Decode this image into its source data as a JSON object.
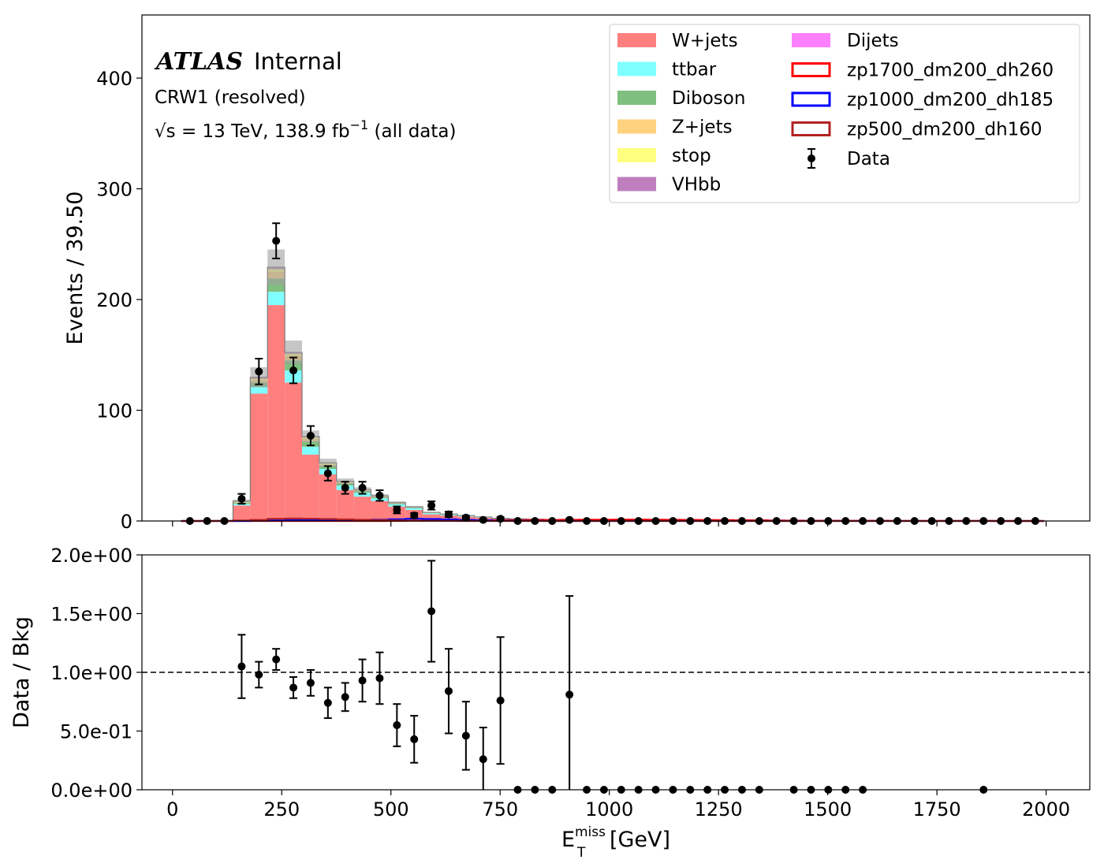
{
  "colors": {
    "wjets": "#ff7f7f",
    "ttbar": "#7fffff",
    "diboson": "#7fbf7f",
    "zjets": "#ffd27f",
    "stop": "#ffff7f",
    "vhbb": "#bf7fbf",
    "dijets": "#ff7fff",
    "sig1700": "#ff0000",
    "sig1000": "#0000ff",
    "sig500": "#b22222",
    "uncertainty": "#a0a0a0"
  },
  "annotation": {
    "atlas": "ATLAS",
    "internal": "Internal",
    "region": "CRW1 (resolved)",
    "sqrt": "√s",
    "energy": " = 13 TeV, 138.9 fb",
    "lumi_exp": "−1",
    "tail": " (all data)"
  },
  "chart_data": [
    {
      "type": "bar",
      "stacked": true,
      "ylabel": "Events / 39.50",
      "xlim": [
        -70,
        2100
      ],
      "ylim": [
        0,
        457
      ],
      "xticks": [
        0,
        250,
        500,
        750,
        1000,
        1250,
        1500,
        1750,
        2000
      ],
      "yticks": [
        0,
        100,
        200,
        300,
        400
      ],
      "bin_width": 39.5,
      "bin_start": 20,
      "n_bins": 50,
      "legend": {
        "location": "top-right",
        "entries": [
          "W+jets",
          "ttbar",
          "Diboson",
          "Z+jets",
          "stop",
          "VHbb",
          "Dijets",
          "zp1700_dm200_dh260",
          "zp1000_dm200_dh185",
          "zp500_dm200_dh160",
          "Data"
        ]
      },
      "series": [
        {
          "name": "W+jets",
          "key": "wjets",
          "values": [
            0.3,
            0.4,
            0.5,
            14,
            115,
            195,
            125,
            60,
            42,
            28,
            22,
            18,
            13,
            10,
            6,
            5,
            4,
            3,
            2,
            1.6,
            1.3,
            1.1,
            1,
            0.9,
            0.8,
            0.8,
            0.7,
            0.7,
            0.6,
            0.6,
            0.6,
            0.5,
            0.5,
            0.5,
            0.5,
            0.4,
            0.4,
            0.4,
            0.4,
            0.4,
            0.4,
            0.3,
            0.3,
            0.3,
            0.3,
            0.3,
            0.3,
            0.3,
            0.3,
            0.3
          ]
        },
        {
          "name": "ttbar",
          "key": "ttbar",
          "values": [
            0,
            0,
            0,
            1.5,
            6,
            12,
            11,
            7,
            5,
            4,
            3.5,
            2.5,
            2,
            1.5,
            1,
            0.8,
            0.6,
            0.4,
            0.3,
            0.2,
            0.2,
            0.1,
            0.1,
            0.1,
            0.1,
            0.1,
            0.1,
            0,
            0,
            0,
            0,
            0,
            0,
            0,
            0,
            0,
            0,
            0,
            0,
            0,
            0,
            0,
            0,
            0,
            0,
            0,
            0,
            0,
            0,
            0
          ]
        },
        {
          "name": "Diboson",
          "key": "diboson",
          "values": [
            0,
            0,
            0,
            1,
            4,
            12,
            9,
            5,
            3,
            2,
            1.5,
            1,
            0.8,
            0.6,
            0.4,
            0.3,
            0.2,
            0.2,
            0.1,
            0.1,
            0.1,
            0.1,
            0,
            0,
            0,
            0,
            0,
            0,
            0,
            0,
            0,
            0,
            0,
            0,
            0,
            0,
            0,
            0,
            0,
            0,
            0,
            0,
            0,
            0,
            0,
            0,
            0,
            0,
            0,
            0
          ]
        },
        {
          "name": "Z+jets",
          "key": "zjets",
          "values": [
            0,
            0,
            0,
            0.5,
            2,
            6,
            4,
            2,
            1,
            0.8,
            0.6,
            0.5,
            0.4,
            0.3,
            0.2,
            0.1,
            0.1,
            0.1,
            0,
            0,
            0,
            0,
            0,
            0,
            0,
            0,
            0,
            0,
            0,
            0,
            0,
            0,
            0,
            0,
            0,
            0,
            0,
            0,
            0,
            0,
            0,
            0,
            0,
            0,
            0,
            0,
            0,
            0,
            0,
            0
          ]
        },
        {
          "name": "stop",
          "key": "stop",
          "values": [
            0,
            0,
            0,
            0.5,
            1.5,
            2.5,
            2,
            1.5,
            1,
            0.7,
            0.5,
            0.4,
            0.3,
            0.2,
            0.1,
            0.1,
            0.1,
            0,
            0,
            0,
            0,
            0,
            0,
            0,
            0,
            0,
            0,
            0,
            0,
            0,
            0,
            0,
            0,
            0,
            0,
            0,
            0,
            0,
            0,
            0,
            0,
            0,
            0,
            0,
            0,
            0,
            0,
            0,
            0,
            0
          ]
        },
        {
          "name": "VHbb",
          "key": "vhbb",
          "values": [
            0,
            0,
            0,
            0.3,
            0.8,
            1.2,
            0.9,
            0.6,
            0.4,
            0.3,
            0.2,
            0.2,
            0.1,
            0.1,
            0.1,
            0,
            0,
            0,
            0,
            0,
            0,
            0,
            0,
            0,
            0,
            0,
            0,
            0,
            0,
            0,
            0,
            0,
            0,
            0,
            0,
            0,
            0,
            0,
            0,
            0,
            0,
            0,
            0,
            0,
            0,
            0,
            0,
            0,
            0,
            0
          ]
        },
        {
          "name": "Dijets",
          "key": "dijets",
          "values": [
            0,
            0,
            0,
            0.2,
            0.5,
            0.5,
            0.4,
            0.3,
            0.2,
            0.1,
            0.1,
            0.1,
            0,
            0,
            0,
            0,
            0,
            0,
            0,
            0,
            0,
            0,
            0,
            0,
            0,
            0,
            0,
            0,
            0,
            0,
            0,
            0,
            0,
            0,
            0,
            0,
            0,
            0,
            0,
            0,
            0,
            0,
            0,
            0,
            0,
            0,
            0,
            0,
            0,
            0
          ]
        }
      ],
      "signals": [
        {
          "name": "zp1700_dm200_dh260",
          "key": "sig1700",
          "values": [
            0,
            0,
            0,
            0,
            0,
            0,
            0,
            0,
            0,
            0,
            0,
            0,
            0.1,
            0.2,
            0.3,
            0.4,
            0.5,
            0.6,
            0.7,
            0.8,
            0.9,
            1,
            1.1,
            1.2,
            1.2,
            1.3,
            1.3,
            1.2,
            1.1,
            1,
            0.9,
            0.8,
            0.7,
            0.6,
            0.5,
            0.4,
            0.3,
            0.3,
            0.2,
            0.2,
            0.2,
            0.1,
            0.1,
            0.1,
            0.1,
            0.1,
            0.1,
            0,
            0,
            0
          ]
        },
        {
          "name": "zp1000_dm200_dh185",
          "key": "sig1000",
          "values": [
            0,
            0,
            0,
            0,
            0.3,
            0.5,
            0.6,
            0.7,
            0.8,
            0.9,
            1,
            1.2,
            1.5,
            2,
            1.8,
            1.4,
            1,
            0.6,
            0.3,
            0.2,
            0.1,
            0,
            0,
            0,
            0,
            0,
            0,
            0,
            0,
            0,
            0,
            0,
            0,
            0,
            0,
            0,
            0,
            0,
            0,
            0,
            0,
            0,
            0,
            0,
            0,
            0,
            0,
            0,
            0,
            0
          ]
        },
        {
          "name": "zp500_dm200_dh160",
          "key": "sig500",
          "values": [
            0,
            0,
            0,
            0.5,
            1,
            2,
            2.2,
            2.1,
            1.8,
            1.4,
            1.1,
            0.8,
            0.5,
            0.3,
            0.2,
            0.1,
            0,
            0,
            0,
            0,
            0,
            0,
            0,
            0,
            0,
            0,
            0,
            0,
            0,
            0,
            0,
            0,
            0,
            0,
            0,
            0,
            0,
            0,
            0,
            0,
            0,
            0,
            0,
            0,
            0,
            0,
            0,
            0,
            0,
            0
          ]
        }
      ],
      "uncertainty_rel": 0.07,
      "data": {
        "name": "Data",
        "x": [
          39.75,
          79.25,
          118.75,
          158.25,
          197.75,
          237.25,
          276.75,
          316.25,
          355.75,
          395.25,
          434.75,
          474.25,
          513.75,
          553.25,
          592.75,
          632.25,
          671.75,
          711.25,
          750.75,
          790.25,
          829.75,
          869.25,
          908.75,
          948.25,
          987.75,
          1027.25,
          1066.75,
          1106.25,
          1145.75,
          1185.25,
          1224.75,
          1264.25,
          1303.75,
          1343.25,
          1382.75,
          1422.25,
          1461.75,
          1501.25,
          1540.75,
          1580.25,
          1619.75,
          1659.25,
          1698.75,
          1738.25,
          1777.75,
          1817.25,
          1856.75,
          1896.25,
          1935.75,
          1975.25
        ],
        "y": [
          0,
          0,
          0,
          20,
          135,
          253,
          136,
          77,
          43,
          30,
          30,
          23,
          10,
          5,
          14,
          6,
          3,
          1,
          2,
          0,
          0,
          0,
          1,
          0,
          0,
          0,
          0,
          0,
          0,
          0,
          0,
          0,
          0,
          0,
          0,
          0,
          0,
          0,
          0,
          0,
          0,
          0,
          0,
          0,
          0,
          0,
          0,
          0,
          0,
          0
        ]
      }
    },
    {
      "type": "scatter",
      "xlabel_base": "E",
      "xlabel_sub": "T",
      "xlabel_sup": "miss",
      "xlabel_unit": " [GeV]",
      "ylabel": "Data / Bkg",
      "xlim": [
        -70,
        2100
      ],
      "ylim": [
        0,
        2
      ],
      "reference_line": 1.0,
      "xticks": [
        0,
        250,
        500,
        750,
        1000,
        1250,
        1500,
        1750,
        2000
      ],
      "yticks": [
        0,
        0.5,
        1.0,
        1.5,
        2.0
      ],
      "ytick_labels": [
        "0.0e+00",
        "5.0e-01",
        "1.0e+00",
        "1.5e+00",
        "2.0e+00"
      ],
      "points": {
        "x": [
          158.25,
          197.75,
          237.25,
          276.75,
          316.25,
          355.75,
          395.25,
          434.75,
          474.25,
          513.75,
          553.25,
          592.75,
          632.25,
          671.75,
          711.25,
          750.75,
          790.25,
          829.75,
          869.25,
          908.75,
          948.25,
          987.75,
          1027.25,
          1066.75,
          1106.25,
          1145.75,
          1185.25,
          1224.75,
          1264.25,
          1303.75,
          1343.25,
          1422.25,
          1461.75,
          1501.25,
          1540.75,
          1580.25,
          1856.75
        ],
        "y": [
          1.05,
          0.98,
          1.11,
          0.87,
          0.91,
          0.74,
          0.79,
          0.93,
          0.95,
          0.55,
          0.43,
          1.52,
          0.84,
          0.46,
          0.26,
          0.76,
          0,
          0,
          0,
          0.81,
          0,
          0,
          0,
          0,
          0,
          0,
          0,
          0,
          0,
          0,
          0,
          0,
          0,
          0,
          0,
          0,
          0
        ],
        "err": [
          0.27,
          0.11,
          0.09,
          0.09,
          0.11,
          0.13,
          0.12,
          0.18,
          0.22,
          0.18,
          0.2,
          0.43,
          0.36,
          0.29,
          0.27,
          0.54,
          0,
          0,
          0,
          0.84,
          0,
          0,
          0,
          0,
          0,
          0,
          0,
          0,
          0,
          0,
          0,
          0,
          0,
          0,
          0,
          0,
          0
        ]
      }
    }
  ]
}
